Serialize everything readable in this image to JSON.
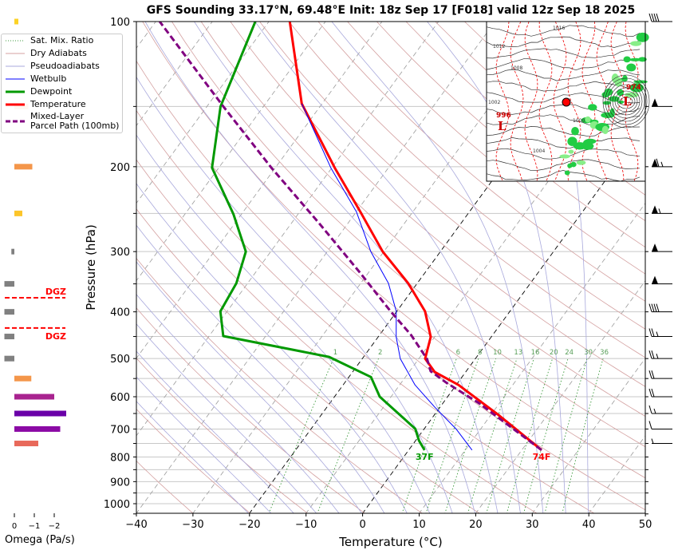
{
  "title": "GFS Sounding 33.17°N, 69.48°E Init: 18z Sep 17 [F018] valid 12z Sep 18 2025",
  "colors": {
    "temperature": "#ff0000",
    "dewpoint": "#009900",
    "wetbulb": "#0000ff",
    "parcel": "#800080",
    "dry_adiabat": "#d4a0a0",
    "moist_adiabat": "#a8a8dc",
    "mixing_ratio": "#3c9a3c",
    "isotherm": "#9a9a9a",
    "dgz": "#ff0000"
  },
  "legend": [
    {
      "label": "Sat. Mix. Ratio",
      "style": "mix"
    },
    {
      "label": "Dry Adiabats",
      "style": "dry"
    },
    {
      "label": "Pseudoadiabats",
      "style": "moist"
    },
    {
      "label": "Wetbulb",
      "style": "wetbulb"
    },
    {
      "label": "Dewpoint",
      "style": "dewpoint"
    },
    {
      "label": "Temperature",
      "style": "temperature"
    },
    {
      "label": "Mixed-Layer\nParcel Path (100mb)",
      "style": "parcel"
    }
  ],
  "chart_data": {
    "type": "line",
    "subtype": "skew-t log-p",
    "xlabel": "Temperature (°C)",
    "ylabel": "Pressure (hPa)",
    "xlim": [
      -40,
      50
    ],
    "ylim": [
      1050,
      100
    ],
    "xticks": [
      -40,
      -30,
      -20,
      -10,
      0,
      10,
      20,
      30,
      40,
      50
    ],
    "xtick_labels": [
      "−40",
      "−30",
      "−20",
      "−10",
      "0",
      "10",
      "20",
      "30",
      "40",
      "50"
    ],
    "yticks": [
      100,
      200,
      300,
      400,
      500,
      600,
      700,
      800,
      900,
      1000
    ],
    "grid": true,
    "series": [
      {
        "name": "Temperature",
        "p": [
          774,
          655,
          567,
          533,
          500,
          451,
          399,
          349,
          300,
          248,
          201,
          148,
          100
        ],
        "t": [
          23.5,
          11.4,
          0.4,
          -5.5,
          -8.9,
          -10.7,
          -15.0,
          -21.6,
          -30.2,
          -39.3,
          -49.5,
          -63.6,
          -76.3
        ]
      },
      {
        "name": "Dewpoint",
        "p": [
          774,
          740,
          699,
          600,
          546,
          496,
          449,
          399,
          349,
          300,
          251,
          201,
          150,
          100
        ],
        "t": [
          2.8,
          0.6,
          -1.6,
          -12.0,
          -16.1,
          -26.1,
          -47.5,
          -51.2,
          -52.0,
          -54.4,
          -61.4,
          -71.2,
          -77.6,
          -82.4
        ]
      },
      {
        "name": "Wetbulb",
        "p": [
          774,
          699,
          631,
          567,
          500,
          451,
          399,
          349,
          300,
          248,
          201,
          148
        ],
        "t": [
          11.2,
          5.6,
          -0.9,
          -7.3,
          -13.3,
          -16.8,
          -20.1,
          -25.1,
          -32.3,
          -40.0,
          -50.2,
          -63.6
        ]
      },
      {
        "name": "Mixed-Layer Parcel Path (100mb)",
        "p": [
          774,
          673,
          618,
          562,
          531,
          501,
          447,
          399,
          330,
          262,
          201,
          150,
          100
        ],
        "t": [
          23.5,
          12.8,
          6.3,
          -1.9,
          -6.3,
          -8.5,
          -14.4,
          -21.1,
          -31.8,
          -45.1,
          -60.7,
          -77.1,
          -99.3
        ]
      }
    ],
    "surface_labels": {
      "temperature": "74F",
      "dewpoint": "37F"
    },
    "mixing_ratio_lines": [
      1,
      2,
      6,
      8,
      10,
      13,
      16,
      20,
      24,
      30,
      36
    ],
    "mixing_ratio_labels": [
      "1",
      "2",
      "6",
      "8",
      "10",
      "13",
      "16",
      "20",
      "24",
      "30",
      "36"
    ],
    "dgz": {
      "top_p": 374,
      "bottom_p": 432,
      "label": "DGZ"
    },
    "omega": {
      "xlabel": "Omega (Pa/s)",
      "xticks": [
        0,
        -1,
        -2
      ],
      "xtick_labels": [
        "0",
        "−1",
        "−2"
      ],
      "levels": [
        {
          "p": 100,
          "value": -0.2,
          "color": "#fcd225"
        },
        {
          "p": 150,
          "value": -0.7,
          "color": "#f4964a"
        },
        {
          "p": 200,
          "value": -0.9,
          "color": "#f4964a"
        },
        {
          "p": 250,
          "value": -0.4,
          "color": "#fcc52a"
        },
        {
          "p": 300,
          "value": 0.15,
          "color": "#808080"
        },
        {
          "p": 350,
          "value": 0.5,
          "color": "#808080"
        },
        {
          "p": 400,
          "value": 0.5,
          "color": "#808080"
        },
        {
          "p": 450,
          "value": 0.5,
          "color": "#808080"
        },
        {
          "p": 500,
          "value": 0.5,
          "color": "#808080"
        },
        {
          "p": 550,
          "value": -0.85,
          "color": "#f4964a"
        },
        {
          "p": 600,
          "value": -2.0,
          "color": "#a8238f"
        },
        {
          "p": 650,
          "value": -2.6,
          "color": "#6a00a8"
        },
        {
          "p": 700,
          "value": -2.3,
          "color": "#8b0aa5"
        },
        {
          "p": 750,
          "value": -1.2,
          "color": "#e8695a"
        }
      ]
    },
    "wind_barbs_kt": [
      {
        "p": 100,
        "speed": 40
      },
      {
        "p": 150,
        "speed": 50
      },
      {
        "p": 200,
        "speed": 65
      },
      {
        "p": 250,
        "speed": 55
      },
      {
        "p": 300,
        "speed": 50
      },
      {
        "p": 350,
        "speed": 50
      },
      {
        "p": 400,
        "speed": 40
      },
      {
        "p": 450,
        "speed": 25
      },
      {
        "p": 500,
        "speed": 25
      },
      {
        "p": 550,
        "speed": 20
      },
      {
        "p": 600,
        "speed": 20
      },
      {
        "p": 650,
        "speed": 15
      },
      {
        "p": 700,
        "speed": 10
      },
      {
        "p": 750,
        "speed": 5
      }
    ]
  },
  "map_inset": {
    "labels": [
      "996",
      "974",
      "1016",
      "1000",
      "1004",
      "1008",
      "1012",
      "1002",
      "L",
      "L"
    ]
  }
}
